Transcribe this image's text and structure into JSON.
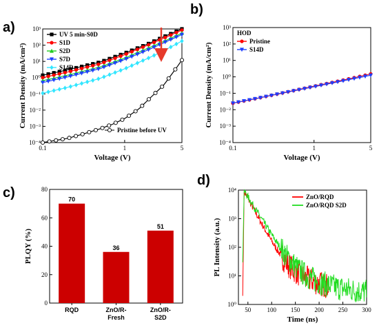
{
  "panel_labels": [
    "a)",
    "b)",
    "c)",
    "d)"
  ],
  "chart_data": [
    {
      "type": "line",
      "id": "a",
      "xlabel": "Voltage (V)",
      "ylabel": "Current Density (mA/cm²)",
      "xscale": "log",
      "yscale": "log",
      "xlim": [
        0.1,
        5
      ],
      "ylim": [
        0.0001,
        1000
      ],
      "xticks": [
        {
          "v": 0.1,
          "t": "0.1"
        },
        {
          "v": 1,
          "t": "1"
        },
        {
          "v": 5,
          "t": "5"
        }
      ],
      "yticks": [
        {
          "v": 0.0001,
          "t": "10⁻⁴"
        },
        {
          "v": 0.001,
          "t": "10⁻³"
        },
        {
          "v": 0.01,
          "t": "10⁻²"
        },
        {
          "v": 0.1,
          "t": "10⁻¹"
        },
        {
          "v": 1,
          "t": "10⁰"
        },
        {
          "v": 10,
          "t": "10¹"
        },
        {
          "v": 100,
          "t": "10²"
        },
        {
          "v": 1000,
          "t": "10³"
        }
      ],
      "legend": "top-left",
      "annotation": "red downward arrow indicating decreasing current from UV 5 min-S0D to S14D",
      "series": [
        {
          "name": "UV 5 min-S0D",
          "color": "#000000",
          "marker": "square",
          "x": [
            0.1,
            0.2,
            0.5,
            1,
            2,
            3,
            5
          ],
          "y": [
            1.4,
            3.0,
            9.0,
            32,
            130,
            330,
            1000
          ]
        },
        {
          "name": "S1D",
          "color": "#ff0000",
          "marker": "circle",
          "x": [
            0.1,
            0.2,
            0.5,
            1,
            2,
            3,
            5
          ],
          "y": [
            1.0,
            2.2,
            7.0,
            26,
            110,
            270,
            850
          ]
        },
        {
          "name": "S2D",
          "color": "#22cc22",
          "marker": "triangle-up",
          "x": [
            0.1,
            0.2,
            0.5,
            1,
            2,
            3,
            5
          ],
          "y": [
            0.65,
            1.4,
            4.5,
            16,
            70,
            170,
            550
          ]
        },
        {
          "name": "S7D",
          "color": "#1f3fff",
          "marker": "triangle-down",
          "x": [
            0.1,
            0.2,
            0.5,
            1,
            2,
            3,
            5
          ],
          "y": [
            0.5,
            1.1,
            3.6,
            13,
            55,
            140,
            450
          ]
        },
        {
          "name": "S14D",
          "color": "#33e6ff",
          "marker": "diamond",
          "x": [
            0.1,
            0.2,
            0.5,
            1,
            2,
            3,
            5
          ],
          "y": [
            0.11,
            0.25,
            0.9,
            3.5,
            17,
            45,
            180
          ]
        },
        {
          "name": "Pristine before UV",
          "color": "#000000",
          "marker": "open-circle",
          "x": [
            0.1,
            0.2,
            0.3,
            0.5,
            0.7,
            1,
            1.5,
            2,
            3,
            4,
            5
          ],
          "y": [
            0.0001,
            0.00018,
            0.00032,
            0.0007,
            0.0013,
            0.003,
            0.012,
            0.05,
            0.35,
            2.5,
            12
          ]
        }
      ]
    },
    {
      "type": "line",
      "id": "b",
      "xlabel": "Voltage (V)",
      "ylabel": "Current Density (mA/cm²)",
      "xscale": "log",
      "yscale": "log",
      "xlim": [
        0.1,
        5
      ],
      "ylim": [
        0.0001,
        1000
      ],
      "xticks": [
        {
          "v": 0.1,
          "t": "0.1"
        },
        {
          "v": 1,
          "t": "1"
        },
        {
          "v": 5,
          "t": "5"
        }
      ],
      "yticks": [
        {
          "v": 0.0001,
          "t": "10⁻⁴"
        },
        {
          "v": 0.001,
          "t": "10⁻³"
        },
        {
          "v": 0.01,
          "t": "10⁻²"
        },
        {
          "v": 0.1,
          "t": "10⁻¹"
        },
        {
          "v": 1,
          "t": "10⁰"
        },
        {
          "v": 10,
          "t": "10¹"
        },
        {
          "v": 100,
          "t": "10²"
        },
        {
          "v": 1000,
          "t": "10³"
        }
      ],
      "legend_title": "HOD",
      "legend": "top-left",
      "series": [
        {
          "name": "Pristine",
          "color": "#ff0000",
          "marker": "circle",
          "x": [
            0.1,
            0.2,
            0.5,
            1,
            2,
            3,
            5
          ],
          "y": [
            0.025,
            0.05,
            0.13,
            0.27,
            0.55,
            0.85,
            1.5
          ]
        },
        {
          "name": "S14D",
          "color": "#1f3fff",
          "marker": "triangle-down",
          "x": [
            0.1,
            0.2,
            0.5,
            1,
            2,
            3,
            5
          ],
          "y": [
            0.025,
            0.049,
            0.125,
            0.25,
            0.5,
            0.75,
            1.25
          ]
        }
      ]
    },
    {
      "type": "bar",
      "id": "c",
      "categories": [
        [
          "RQD"
        ],
        [
          "ZnO/R-",
          "Fresh"
        ],
        [
          "ZnO/R-",
          "S2D"
        ]
      ],
      "values": [
        70,
        36,
        51
      ],
      "value_labels": [
        "70",
        "36",
        "51"
      ],
      "ylabel": "PLQY (%)",
      "ylim": [
        0,
        80
      ],
      "yticks": [
        0,
        20,
        40,
        60,
        80
      ],
      "color": "#cc0000"
    },
    {
      "type": "line",
      "id": "d",
      "xlabel": "Time (ns)",
      "ylabel": "PL Intensity (a.u.)",
      "xscale": "linear",
      "yscale": "log",
      "xlim": [
        30,
        300
      ],
      "ylim": [
        1,
        10000
      ],
      "xticks": [
        50,
        100,
        150,
        200,
        250,
        300
      ],
      "yticks": [
        {
          "v": 1,
          "t": "10⁰"
        },
        {
          "v": 10,
          "t": "10¹"
        },
        {
          "v": 100,
          "t": "10²"
        },
        {
          "v": 1000,
          "t": "10³"
        },
        {
          "v": 10000,
          "t": "10⁴"
        }
      ],
      "legend": "top-right",
      "series": [
        {
          "name": "ZnO/RQD",
          "color": "#ff0000",
          "peak_x": 42,
          "peak_y": 9000,
          "decay_tau_ns": 14,
          "floor": 2,
          "end_x": 220
        },
        {
          "name": "ZnO/RQD S2D",
          "color": "#22dd22",
          "peak_x": 42,
          "peak_y": 9500,
          "decay_tau_ns": 16,
          "floor": 2.2,
          "end_x": 300
        }
      ]
    }
  ]
}
